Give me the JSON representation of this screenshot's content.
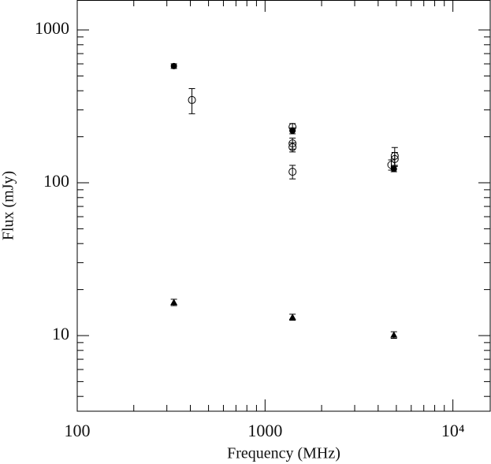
{
  "chart_data": {
    "type": "scatter",
    "xlabel": "Frequency (MHz)",
    "ylabel": "Flux (mJy)",
    "xlim": [
      100,
      15800
    ],
    "ylim": [
      3.2,
      1570
    ],
    "xscale": "log",
    "yscale": "log",
    "xticks": [
      100,
      1000,
      {
        "value": 10000,
        "label": "10⁴"
      }
    ],
    "yticks": [
      10,
      100,
      1000
    ],
    "xminorticks": [
      200,
      300,
      400,
      500,
      600,
      700,
      800,
      900,
      2000,
      3000,
      4000,
      5000,
      6000,
      7000,
      8000,
      9000
    ],
    "yminorticks": [
      4,
      5,
      6,
      7,
      8,
      9,
      20,
      30,
      40,
      50,
      60,
      70,
      80,
      90,
      200,
      300,
      400,
      500,
      600,
      700,
      800,
      900
    ],
    "series": [
      {
        "marker": "filled-circle",
        "color": "#000000",
        "x": [
          327,
          1400,
          4850
        ],
        "values": [
          580,
          219,
          123
        ],
        "errors": [
          20,
          10,
          5
        ]
      },
      {
        "marker": "open-circle",
        "color": "#000000",
        "x": [
          408,
          1400,
          1400,
          1400,
          1400,
          4700,
          4900,
          4900
        ],
        "values": [
          348,
          232,
          181,
          171,
          118,
          131,
          150,
          143
        ],
        "errors": [
          65,
          12,
          15,
          12,
          12,
          10,
          20,
          15
        ]
      },
      {
        "marker": "triangle",
        "color": "#000000",
        "x": [
          327,
          1400,
          4850
        ],
        "values": [
          16.5,
          13.2,
          10.1
        ],
        "errors": [
          0.8,
          0.6,
          0.5
        ]
      }
    ]
  }
}
